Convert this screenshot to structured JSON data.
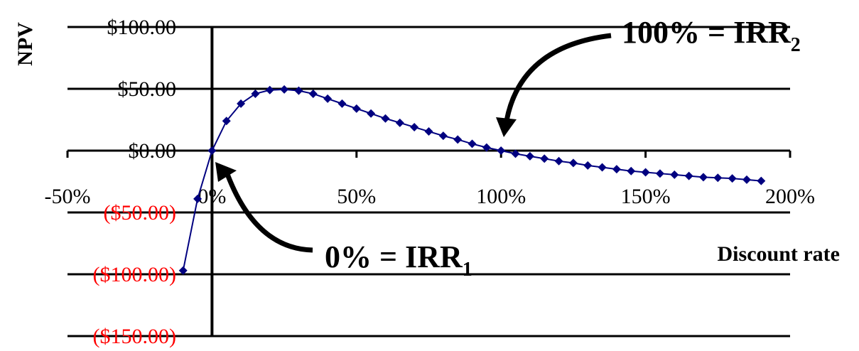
{
  "chart_data": {
    "type": "line",
    "title": "",
    "xlabel": "Discount rate",
    "ylabel": "NPV",
    "xlim": [
      -50,
      200
    ],
    "ylim": [
      -150,
      100
    ],
    "x_ticks": [
      {
        "value": -50,
        "label": "-50%"
      },
      {
        "value": 0,
        "label": "0%"
      },
      {
        "value": 50,
        "label": "50%"
      },
      {
        "value": 100,
        "label": "100%"
      },
      {
        "value": 150,
        "label": "150%"
      },
      {
        "value": 200,
        "label": "200%"
      }
    ],
    "y_ticks": [
      {
        "value": 100,
        "label": "$100.00",
        "color": "#000000"
      },
      {
        "value": 50,
        "label": "$50.00",
        "color": "#000000"
      },
      {
        "value": 0,
        "label": "$0.00",
        "color": "#000000"
      },
      {
        "value": -50,
        "label": "($50.00)",
        "color": "#ff0000"
      },
      {
        "value": -100,
        "label": "($100.00)",
        "color": "#ff0000"
      },
      {
        "value": -150,
        "label": "($150.00)",
        "color": "#ff0000"
      }
    ],
    "grid": "horizontal",
    "series": [
      {
        "color": "#000080",
        "x": [
          -10,
          -5,
          0,
          5,
          10,
          15,
          20,
          25,
          30,
          35,
          40,
          45,
          50,
          55,
          60,
          65,
          70,
          75,
          80,
          85,
          90,
          95,
          100,
          105,
          110,
          115,
          120,
          125,
          130,
          135,
          140,
          145,
          150,
          155,
          160,
          165,
          170,
          175,
          180,
          185,
          190
        ],
        "y": [
          -97,
          -39,
          0,
          24,
          38,
          46,
          49,
          49.5,
          48.5,
          46,
          42,
          38,
          34,
          30,
          26,
          22.5,
          19,
          15.5,
          12,
          9,
          5.5,
          2.5,
          0,
          -2.5,
          -4.5,
          -6.5,
          -8.5,
          -10,
          -12,
          -13.5,
          -15,
          -16.5,
          -17.5,
          -18.5,
          -19.5,
          -20.5,
          -21.5,
          -22,
          -22.5,
          -23.5,
          -24.5
        ]
      }
    ],
    "annotations": [
      {
        "text": "100% = IRR",
        "subscript": "2",
        "points_to": [
          100,
          0
        ]
      },
      {
        "text": "0% = IRR",
        "subscript": "1",
        "points_to": [
          0,
          0
        ]
      }
    ]
  }
}
